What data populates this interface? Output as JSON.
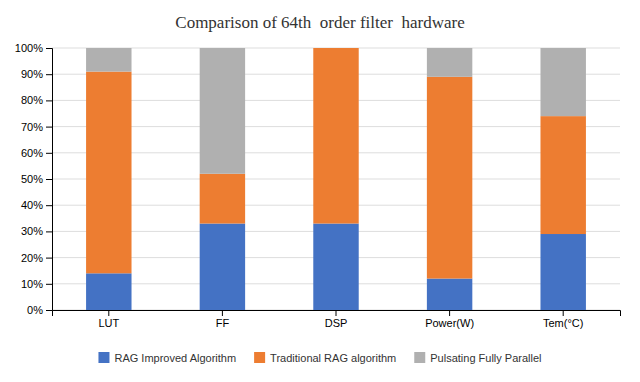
{
  "chart_data": {
    "type": "bar",
    "stacked": true,
    "title": "Comparison of 64th  order filter  hardware",
    "categories": [
      "LUT",
      "FF",
      "DSP",
      "Power(W)",
      "Tem(°C)"
    ],
    "series": [
      {
        "name": "RAG Improved Algorithm",
        "color": "#4472C4",
        "values": [
          14,
          33,
          33,
          12,
          29
        ]
      },
      {
        "name": "Traditional RAG algorithm",
        "color": "#ED7D31",
        "values": [
          77,
          19,
          67,
          77,
          45
        ]
      },
      {
        "name": "Pulsating Fully Parallel",
        "color": "#B0B0B0",
        "values": [
          9,
          48,
          0,
          11,
          26
        ]
      }
    ],
    "ylim": [
      0,
      100
    ],
    "yticks": [
      {
        "value": 0,
        "label": "0%"
      },
      {
        "value": 10,
        "label": "10%"
      },
      {
        "value": 20,
        "label": "20%"
      },
      {
        "value": 30,
        "label": "30%"
      },
      {
        "value": 40,
        "label": "40%"
      },
      {
        "value": 50,
        "label": "50%"
      },
      {
        "value": 60,
        "label": "60%"
      },
      {
        "value": 70,
        "label": "70%"
      },
      {
        "value": 80,
        "label": "80%"
      },
      {
        "value": 90,
        "label": "90%"
      },
      {
        "value": 100,
        "label": "100%"
      }
    ],
    "grid": true,
    "legend": "bottom"
  }
}
